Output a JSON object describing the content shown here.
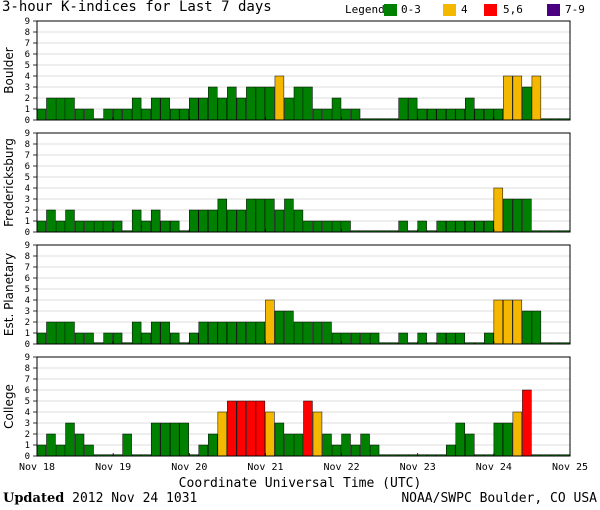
{
  "chart_data": {
    "type": "bar",
    "title": "3-hour K-indices for Last 7 days",
    "xlabel": "Coordinate Universal Time (UTC)",
    "ylim": [
      0,
      9
    ],
    "y_ticks": [
      "0",
      "1",
      "2",
      "3",
      "4",
      "5",
      "6",
      "7",
      "8",
      "9"
    ],
    "x_ticks": [
      "Nov 18",
      "Nov 19",
      "Nov 20",
      "Nov 21",
      "Nov 22",
      "Nov 23",
      "Nov 24",
      "Nov 25"
    ],
    "grid": true,
    "legend": {
      "label": "Legend:",
      "placement": "top-right",
      "entries": [
        {
          "label": "0-3",
          "color": "#008000"
        },
        {
          "label": "4",
          "color": "#f5b800"
        },
        {
          "label": "5,6",
          "color": "#ff0000"
        },
        {
          "label": "7-9",
          "color": "#4b0082"
        }
      ]
    },
    "panels": [
      {
        "name": "Boulder",
        "values": [
          1,
          2,
          2,
          2,
          1,
          1,
          0,
          1,
          1,
          1,
          2,
          1,
          2,
          2,
          1,
          1,
          2,
          2,
          3,
          2,
          3,
          2,
          3,
          3,
          3,
          4,
          2,
          3,
          3,
          1,
          1,
          2,
          1,
          1,
          0,
          0,
          0,
          0,
          2,
          2,
          1,
          1,
          1,
          1,
          1,
          2,
          1,
          1,
          1,
          4,
          4,
          3,
          4,
          0,
          0,
          0
        ]
      },
      {
        "name": "Fredericksburg",
        "values": [
          1,
          2,
          1,
          2,
          1,
          1,
          1,
          1,
          1,
          0,
          2,
          1,
          2,
          1,
          1,
          0,
          2,
          2,
          2,
          3,
          2,
          2,
          3,
          3,
          3,
          2,
          3,
          2,
          1,
          1,
          1,
          1,
          1,
          0,
          0,
          0,
          0,
          0,
          1,
          0,
          1,
          0,
          1,
          1,
          1,
          1,
          1,
          1,
          4,
          3,
          3,
          3,
          0,
          0,
          0,
          0
        ]
      },
      {
        "name": "Est. Planetary",
        "values": [
          1,
          2,
          2,
          2,
          1,
          1,
          0,
          1,
          1,
          0,
          2,
          1,
          2,
          2,
          1,
          0,
          1,
          2,
          2,
          2,
          2,
          2,
          2,
          2,
          4,
          3,
          3,
          2,
          2,
          2,
          2,
          1,
          1,
          1,
          1,
          1,
          0,
          0,
          1,
          0,
          1,
          0,
          1,
          1,
          1,
          0,
          0,
          1,
          4,
          4,
          4,
          3,
          3,
          0,
          0,
          0
        ]
      },
      {
        "name": "College",
        "values": [
          1,
          2,
          1,
          3,
          2,
          1,
          0,
          0,
          0,
          2,
          0,
          0,
          3,
          3,
          3,
          3,
          0,
          1,
          2,
          4,
          5,
          5,
          5,
          5,
          4,
          3,
          2,
          2,
          5,
          4,
          2,
          1,
          2,
          1,
          2,
          1,
          0,
          0,
          0,
          0,
          0,
          0,
          0,
          1,
          3,
          2,
          0,
          0,
          3,
          3,
          4,
          6,
          0,
          0,
          0,
          0
        ]
      }
    ]
  },
  "footer": {
    "updated_label": "Updated",
    "updated_value": "2012 Nov 24 1031",
    "credit": "NOAA/SWPC Boulder, CO USA"
  }
}
